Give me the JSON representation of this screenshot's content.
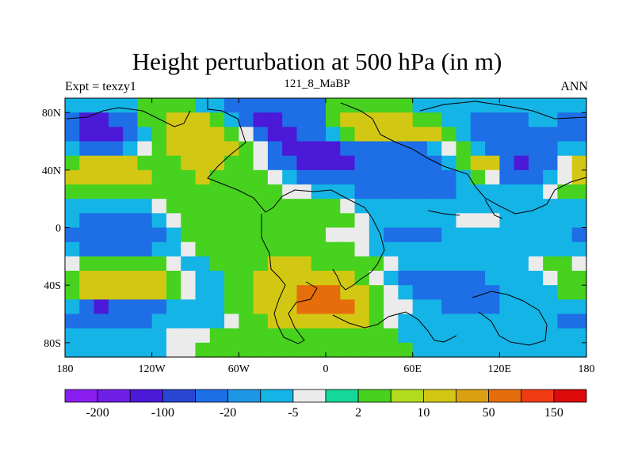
{
  "chart_data": {
    "type": "heatmap",
    "title": "Height perturbation at 500 hPa (in m)",
    "left_label": "Expt = texzy1",
    "center_label": "121_8_MaBP",
    "right_label": "ANN",
    "x_ticks": [
      "180",
      "120W",
      "60W",
      "0",
      "60E",
      "120E",
      "180"
    ],
    "y_ticks": [
      "80N",
      "40N",
      "0",
      "40S",
      "80S"
    ],
    "xlim": [
      -180,
      180
    ],
    "ylim": [
      -90,
      90
    ],
    "colorbar": {
      "colors": [
        "#8a1ef0",
        "#6e1ee6",
        "#4b19d7",
        "#2846d2",
        "#1e6ee6",
        "#1e96e6",
        "#14b4e6",
        "#ebebeb",
        "#16d79a",
        "#46d21e",
        "#b4dc1e",
        "#d2c814",
        "#dca014",
        "#e66e0a",
        "#f03c14",
        "#dc0a0a"
      ],
      "labels": [
        "-200",
        "-100",
        "-20",
        "-5",
        "2",
        "10",
        "50",
        "150"
      ]
    },
    "field": [
      [
        -5,
        -5,
        -5,
        -5,
        -5,
        10,
        10,
        10,
        10,
        -5,
        -5,
        -20,
        -20,
        -20,
        -20,
        -20,
        -20,
        -20,
        10,
        10,
        10,
        10,
        10,
        10,
        -5,
        -5,
        -5,
        -5,
        -5,
        -5,
        -5,
        -5,
        -5,
        -5,
        -5,
        -5
      ],
      [
        -20,
        -100,
        -100,
        -20,
        -20,
        10,
        10,
        50,
        50,
        50,
        10,
        -5,
        -20,
        -100,
        -100,
        -20,
        -20,
        -20,
        10,
        50,
        50,
        50,
        50,
        50,
        10,
        10,
        -5,
        -5,
        -20,
        -20,
        -20,
        -20,
        -5,
        -5,
        -20,
        -20
      ],
      [
        -20,
        -100,
        -100,
        -100,
        -20,
        -5,
        10,
        50,
        50,
        50,
        50,
        10,
        2,
        -20,
        -100,
        -100,
        -20,
        -20,
        -5,
        10,
        50,
        50,
        50,
        50,
        50,
        50,
        10,
        -5,
        -20,
        -20,
        -20,
        -20,
        -20,
        -20,
        -20,
        -20
      ],
      [
        -5,
        -20,
        -20,
        -20,
        -5,
        2,
        10,
        50,
        50,
        50,
        50,
        50,
        10,
        2,
        -20,
        -100,
        -100,
        -100,
        -100,
        -20,
        -20,
        -20,
        -20,
        -20,
        -20,
        -5,
        2,
        10,
        -5,
        -20,
        -20,
        -20,
        -20,
        -20,
        -5,
        -5
      ],
      [
        10,
        50,
        50,
        50,
        50,
        10,
        10,
        10,
        50,
        50,
        50,
        10,
        10,
        2,
        -20,
        -20,
        -100,
        -100,
        -100,
        -100,
        -20,
        -20,
        -20,
        -20,
        -20,
        -20,
        -5,
        10,
        50,
        50,
        -20,
        -100,
        -20,
        -20,
        2,
        50
      ],
      [
        50,
        50,
        50,
        50,
        50,
        50,
        10,
        10,
        10,
        50,
        10,
        10,
        10,
        10,
        2,
        -5,
        -20,
        -20,
        -20,
        -20,
        -20,
        -20,
        -20,
        -20,
        -20,
        -20,
        -20,
        -5,
        10,
        2,
        -20,
        -20,
        -20,
        -5,
        2,
        50
      ],
      [
        10,
        10,
        10,
        10,
        10,
        10,
        10,
        10,
        10,
        10,
        10,
        10,
        10,
        10,
        10,
        2,
        2,
        -5,
        -5,
        -5,
        -20,
        -20,
        -20,
        -20,
        -20,
        -20,
        -20,
        -5,
        -5,
        -5,
        -5,
        -5,
        -5,
        2,
        10,
        10
      ],
      [
        -5,
        -5,
        -5,
        -5,
        -5,
        -5,
        2,
        10,
        10,
        10,
        10,
        10,
        10,
        10,
        10,
        10,
        10,
        10,
        10,
        2,
        -5,
        -5,
        -5,
        -5,
        -5,
        -5,
        -5,
        -5,
        -5,
        -5,
        -5,
        -5,
        -5,
        -5,
        -5,
        -5
      ],
      [
        -5,
        -20,
        -20,
        -20,
        -20,
        -20,
        -5,
        2,
        10,
        10,
        10,
        10,
        10,
        10,
        10,
        10,
        10,
        10,
        10,
        10,
        2,
        -5,
        -5,
        -5,
        -5,
        -5,
        -5,
        2,
        2,
        2,
        -5,
        -5,
        -5,
        -5,
        -5,
        -5
      ],
      [
        -20,
        -20,
        -20,
        -20,
        -20,
        -20,
        -20,
        -5,
        10,
        10,
        10,
        10,
        10,
        10,
        10,
        10,
        10,
        10,
        2,
        2,
        2,
        -5,
        -20,
        -20,
        -20,
        -20,
        -5,
        -5,
        -5,
        -5,
        -5,
        -5,
        -5,
        -5,
        -5,
        -20
      ],
      [
        -5,
        -20,
        -20,
        -20,
        -20,
        -20,
        -5,
        -5,
        2,
        10,
        10,
        10,
        10,
        10,
        10,
        10,
        10,
        10,
        10,
        10,
        2,
        -5,
        -5,
        -5,
        -5,
        -5,
        -5,
        -5,
        -5,
        -5,
        -5,
        -5,
        -5,
        -5,
        -5,
        -5
      ],
      [
        2,
        10,
        10,
        10,
        10,
        10,
        10,
        2,
        -5,
        -5,
        10,
        10,
        10,
        10,
        50,
        50,
        50,
        10,
        10,
        10,
        10,
        10,
        2,
        -5,
        -5,
        -5,
        -5,
        -5,
        -5,
        -5,
        -5,
        -5,
        2,
        10,
        10,
        2
      ],
      [
        10,
        50,
        50,
        50,
        50,
        50,
        50,
        10,
        2,
        -5,
        -5,
        10,
        10,
        50,
        50,
        50,
        50,
        50,
        50,
        50,
        10,
        2,
        -5,
        -20,
        -20,
        -20,
        -20,
        -20,
        -20,
        -5,
        -5,
        -5,
        -5,
        2,
        10,
        10
      ],
      [
        10,
        50,
        50,
        50,
        50,
        50,
        50,
        10,
        2,
        -5,
        -5,
        10,
        10,
        50,
        50,
        50,
        150,
        150,
        150,
        50,
        50,
        10,
        2,
        -5,
        -20,
        -20,
        -20,
        -20,
        -20,
        -20,
        -5,
        -5,
        -5,
        -5,
        10,
        10
      ],
      [
        -5,
        -20,
        -100,
        -20,
        -20,
        -20,
        -20,
        -5,
        -5,
        -5,
        -5,
        10,
        10,
        50,
        50,
        50,
        150,
        150,
        150,
        150,
        50,
        10,
        2,
        2,
        -5,
        -5,
        -20,
        -20,
        -20,
        -20,
        -5,
        -5,
        -5,
        -5,
        -5,
        -5
      ],
      [
        -20,
        -20,
        -20,
        -20,
        -20,
        -20,
        -5,
        -5,
        -5,
        -5,
        -5,
        2,
        10,
        10,
        50,
        50,
        50,
        50,
        50,
        50,
        50,
        10,
        2,
        -5,
        -5,
        -5,
        -5,
        -5,
        -5,
        -5,
        -5,
        -5,
        -5,
        -5,
        -20,
        -20
      ],
      [
        -5,
        -5,
        -5,
        -5,
        -5,
        -5,
        -5,
        2,
        2,
        2,
        10,
        10,
        10,
        10,
        10,
        10,
        10,
        10,
        10,
        10,
        10,
        10,
        10,
        -5,
        -5,
        -5,
        -5,
        -5,
        -5,
        -5,
        -5,
        -5,
        -5,
        -5,
        -5,
        -5
      ],
      [
        -5,
        -5,
        -5,
        -5,
        -5,
        -5,
        -5,
        2,
        2,
        10,
        10,
        10,
        10,
        10,
        10,
        10,
        10,
        10,
        10,
        10,
        10,
        10,
        10,
        10,
        -5,
        -5,
        -5,
        -5,
        -5,
        -5,
        -5,
        -5,
        -5,
        -5,
        -5,
        -5
      ]
    ]
  }
}
